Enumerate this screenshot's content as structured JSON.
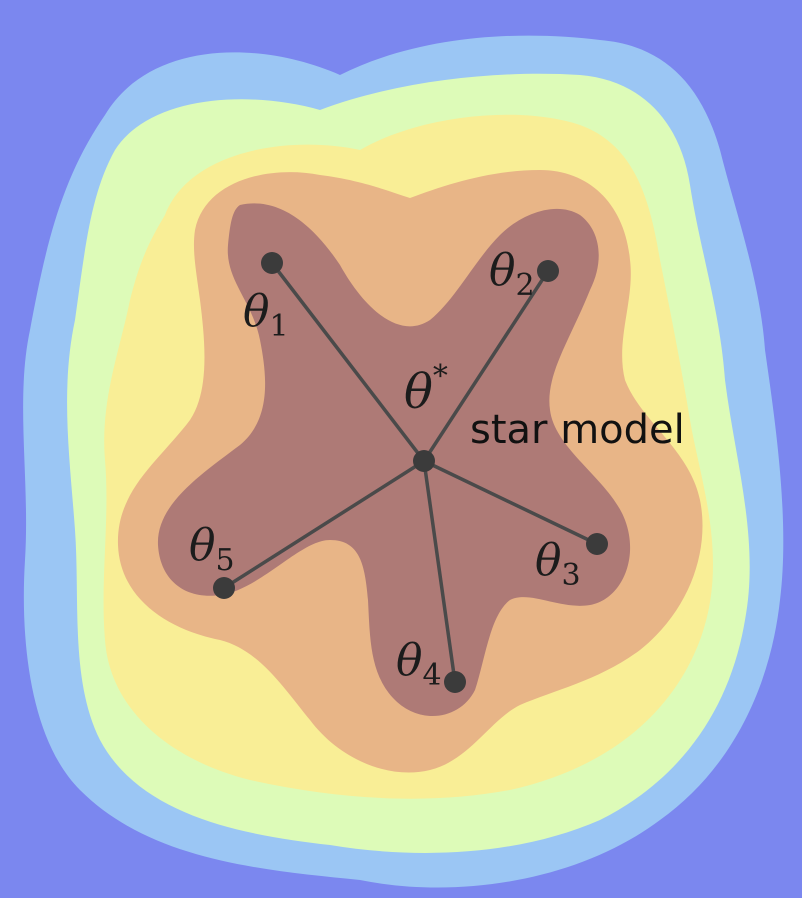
{
  "colors": {
    "background": "#7b87ef",
    "level_1": "#9bc6f4",
    "level_2": "#ddfbb8",
    "level_3": "#f9ee96",
    "level_4": "#e8b587",
    "level_5": "#ae7a76",
    "line": "#4a4a4a",
    "point": "#3b3b3b"
  },
  "center": {
    "label_symbol": "θ",
    "label_sup": "*",
    "caption": "star model"
  },
  "points": [
    {
      "symbol": "θ",
      "sub": "1"
    },
    {
      "symbol": "θ",
      "sub": "2"
    },
    {
      "symbol": "θ",
      "sub": "3"
    },
    {
      "symbol": "θ",
      "sub": "4"
    },
    {
      "symbol": "θ",
      "sub": "5"
    }
  ]
}
